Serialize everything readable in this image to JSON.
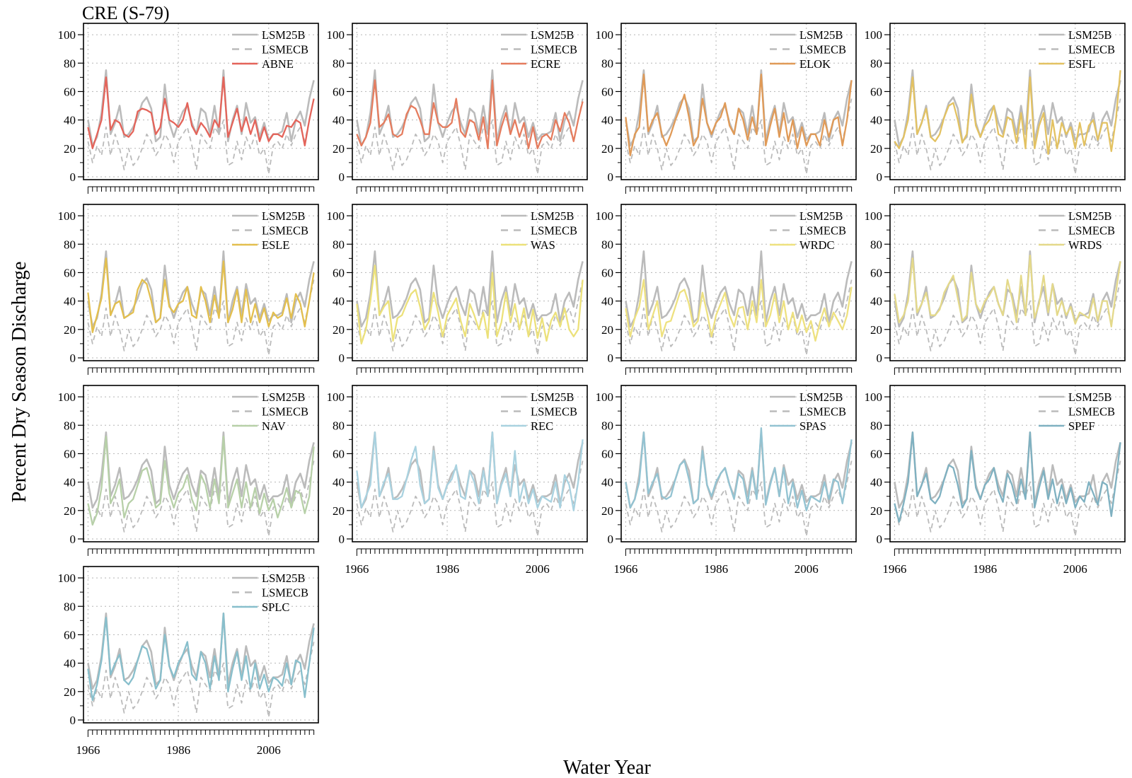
{
  "figure": {
    "title": "CRE (S-79)",
    "xlabel": "Water Year",
    "ylabel": "Percent Dry Season Discharge"
  },
  "chart_data": {
    "type": "line",
    "x": [
      1966,
      1967,
      1968,
      1969,
      1970,
      1971,
      1972,
      1973,
      1974,
      1975,
      1976,
      1977,
      1978,
      1979,
      1980,
      1981,
      1982,
      1983,
      1984,
      1985,
      1986,
      1987,
      1988,
      1989,
      1990,
      1991,
      1992,
      1993,
      1994,
      1995,
      1996,
      1997,
      1998,
      1999,
      2000,
      2001,
      2002,
      2003,
      2004,
      2005,
      2006,
      2007,
      2008,
      2009,
      2010,
      2011,
      2012,
      2013,
      2014,
      2015,
      2016
    ],
    "xticks": [
      1966,
      1986,
      2006
    ],
    "yticks": [
      0,
      20,
      40,
      60,
      80,
      100
    ],
    "xlim": [
      1965,
      2017
    ],
    "ylim": [
      -2,
      108
    ],
    "grid": "dotted",
    "legend_position": "top-right",
    "baseline": {
      "name": "LSM25B",
      "color": "#bbbbbb",
      "values": [
        40,
        22,
        28,
        45,
        75,
        30,
        38,
        50,
        28,
        30,
        35,
        42,
        52,
        56,
        48,
        25,
        28,
        65,
        38,
        28,
        38,
        46,
        50,
        38,
        30,
        48,
        45,
        30,
        50,
        30,
        75,
        25,
        40,
        50,
        30,
        52,
        38,
        42,
        28,
        38,
        26,
        30,
        30,
        32,
        45,
        25,
        40,
        46,
        36,
        55,
        68
      ]
    },
    "baseline2": {
      "name": "LSMECB",
      "color": "#bbbbbb",
      "dash": "7,5",
      "values": [
        25,
        10,
        22,
        15,
        35,
        15,
        30,
        20,
        5,
        20,
        8,
        12,
        20,
        30,
        25,
        15,
        20,
        30,
        25,
        10,
        25,
        30,
        35,
        22,
        5,
        30,
        25,
        20,
        35,
        30,
        40,
        8,
        10,
        25,
        12,
        28,
        20,
        30,
        15,
        20,
        2,
        22,
        25,
        20,
        30,
        22,
        30,
        35,
        25,
        40,
        55
      ]
    },
    "panels": [
      {
        "name": "ABNE",
        "color": "#e4645a",
        "values": [
          35,
          20,
          30,
          40,
          70,
          33,
          40,
          38,
          30,
          28,
          32,
          46,
          48,
          47,
          45,
          30,
          35,
          55,
          40,
          38,
          35,
          40,
          52,
          36,
          30,
          38,
          34,
          28,
          40,
          35,
          70,
          28,
          38,
          48,
          32,
          42,
          30,
          40,
          25,
          35,
          25,
          30,
          30,
          28,
          36,
          35,
          40,
          38,
          22,
          40,
          55
        ]
      },
      {
        "name": "ECRE",
        "color": "#e57c5e",
        "values": [
          30,
          22,
          28,
          38,
          68,
          35,
          38,
          44,
          30,
          28,
          30,
          44,
          50,
          48,
          40,
          30,
          30,
          52,
          38,
          35,
          35,
          38,
          55,
          32,
          28,
          40,
          38,
          26,
          42,
          20,
          68,
          22,
          35,
          45,
          30,
          40,
          28,
          38,
          20,
          35,
          20,
          28,
          30,
          26,
          40,
          32,
          45,
          38,
          25,
          40,
          53
        ]
      },
      {
        "name": "ELOK",
        "color": "#e09a57",
        "values": [
          42,
          15,
          30,
          35,
          72,
          32,
          40,
          45,
          30,
          22,
          30,
          40,
          48,
          58,
          42,
          22,
          28,
          55,
          38,
          30,
          38,
          42,
          52,
          36,
          30,
          48,
          40,
          26,
          42,
          30,
          72,
          22,
          36,
          48,
          28,
          45,
          25,
          40,
          20,
          35,
          22,
          30,
          30,
          22,
          40,
          28,
          40,
          42,
          22,
          40,
          68
        ]
      },
      {
        "name": "ESFL",
        "color": "#e3c262",
        "values": [
          25,
          20,
          28,
          40,
          70,
          30,
          38,
          48,
          28,
          25,
          30,
          42,
          50,
          52,
          40,
          24,
          30,
          58,
          36,
          28,
          36,
          40,
          50,
          30,
          28,
          42,
          40,
          24,
          45,
          20,
          70,
          20,
          36,
          45,
          16,
          40,
          20,
          38,
          30,
          35,
          20,
          38,
          22,
          36,
          40,
          26,
          38,
          38,
          18,
          40,
          75
        ]
      },
      {
        "name": "ESLE",
        "color": "#e3bf4e",
        "values": [
          46,
          18,
          30,
          42,
          70,
          30,
          38,
          40,
          28,
          30,
          32,
          48,
          55,
          52,
          40,
          25,
          28,
          55,
          36,
          32,
          38,
          40,
          50,
          30,
          28,
          50,
          40,
          25,
          44,
          28,
          68,
          25,
          34,
          48,
          25,
          48,
          25,
          38,
          25,
          35,
          22,
          32,
          28,
          30,
          42,
          28,
          45,
          38,
          22,
          40,
          60
        ]
      },
      {
        "name": "WAS",
        "color": "#ece17a",
        "values": [
          38,
          10,
          20,
          40,
          65,
          30,
          36,
          40,
          12,
          28,
          30,
          38,
          45,
          48,
          36,
          20,
          26,
          46,
          32,
          15,
          30,
          36,
          42,
          26,
          15,
          38,
          30,
          20,
          32,
          14,
          60,
          15,
          25,
          46,
          25,
          38,
          20,
          35,
          15,
          34,
          14,
          28,
          12,
          26,
          32,
          22,
          35,
          20,
          15,
          20,
          55
        ]
      },
      {
        "name": "WRDC",
        "color": "#eee17f",
        "values": [
          35,
          15,
          28,
          36,
          55,
          20,
          30,
          40,
          15,
          25,
          26,
          36,
          46,
          48,
          38,
          22,
          26,
          46,
          32,
          15,
          30,
          38,
          46,
          30,
          22,
          35,
          36,
          20,
          40,
          25,
          55,
          22,
          30,
          45,
          25,
          40,
          20,
          32,
          18,
          30,
          18,
          26,
          12,
          25,
          35,
          22,
          32,
          26,
          20,
          30,
          50
        ]
      },
      {
        "name": "WRDS",
        "color": "#e4d98a",
        "values": [
          45,
          25,
          30,
          40,
          70,
          32,
          38,
          46,
          30,
          30,
          34,
          46,
          52,
          58,
          42,
          26,
          30,
          60,
          38,
          32,
          40,
          44,
          50,
          38,
          30,
          55,
          42,
          25,
          58,
          30,
          72,
          28,
          38,
          58,
          32,
          52,
          30,
          40,
          30,
          36,
          24,
          32,
          30,
          28,
          42,
          26,
          40,
          40,
          22,
          46,
          68
        ]
      },
      {
        "name": "NAV",
        "color": "#b7d0a8",
        "values": [
          25,
          10,
          18,
          36,
          72,
          25,
          32,
          42,
          15,
          25,
          28,
          38,
          48,
          50,
          38,
          22,
          25,
          55,
          32,
          22,
          32,
          36,
          45,
          28,
          20,
          45,
          38,
          22,
          42,
          25,
          72,
          22,
          32,
          42,
          22,
          40,
          22,
          36,
          18,
          32,
          20,
          28,
          15,
          25,
          36,
          22,
          34,
          32,
          18,
          30,
          65
        ]
      },
      {
        "name": "REC",
        "color": "#a9d2e0",
        "values": [
          48,
          22,
          30,
          38,
          75,
          30,
          40,
          46,
          28,
          28,
          30,
          42,
          55,
          65,
          38,
          25,
          28,
          62,
          36,
          28,
          38,
          42,
          52,
          30,
          28,
          48,
          40,
          25,
          48,
          30,
          75,
          25,
          38,
          46,
          30,
          62,
          26,
          40,
          25,
          35,
          22,
          30,
          28,
          26,
          40,
          22,
          45,
          38,
          20,
          40,
          70
        ]
      },
      {
        "name": "SPAS",
        "color": "#93c3d2",
        "values": [
          40,
          22,
          28,
          40,
          75,
          32,
          40,
          46,
          30,
          28,
          30,
          42,
          52,
          55,
          42,
          25,
          28,
          62,
          38,
          30,
          40,
          46,
          50,
          38,
          28,
          46,
          42,
          25,
          48,
          28,
          78,
          24,
          38,
          50,
          30,
          50,
          25,
          40,
          22,
          34,
          20,
          30,
          28,
          26,
          40,
          28,
          42,
          40,
          25,
          45,
          70
        ]
      },
      {
        "name": "SPEF",
        "color": "#7fb1c1",
        "values": [
          25,
          12,
          25,
          40,
          75,
          30,
          38,
          46,
          28,
          25,
          30,
          42,
          52,
          50,
          38,
          22,
          28,
          62,
          36,
          28,
          38,
          42,
          50,
          34,
          26,
          46,
          38,
          25,
          42,
          28,
          75,
          22,
          36,
          48,
          28,
          42,
          25,
          38,
          25,
          36,
          22,
          30,
          26,
          40,
          32,
          24,
          40,
          38,
          16,
          40,
          68
        ]
      },
      {
        "name": "SPLC",
        "color": "#88bfcc",
        "values": [
          36,
          14,
          25,
          42,
          72,
          32,
          40,
          46,
          28,
          25,
          30,
          42,
          52,
          50,
          38,
          22,
          28,
          60,
          38,
          30,
          40,
          46,
          55,
          32,
          28,
          48,
          40,
          22,
          45,
          28,
          75,
          20,
          36,
          48,
          28,
          45,
          22,
          40,
          22,
          32,
          20,
          30,
          28,
          24,
          40,
          25,
          42,
          40,
          16,
          40,
          65
        ]
      }
    ]
  }
}
